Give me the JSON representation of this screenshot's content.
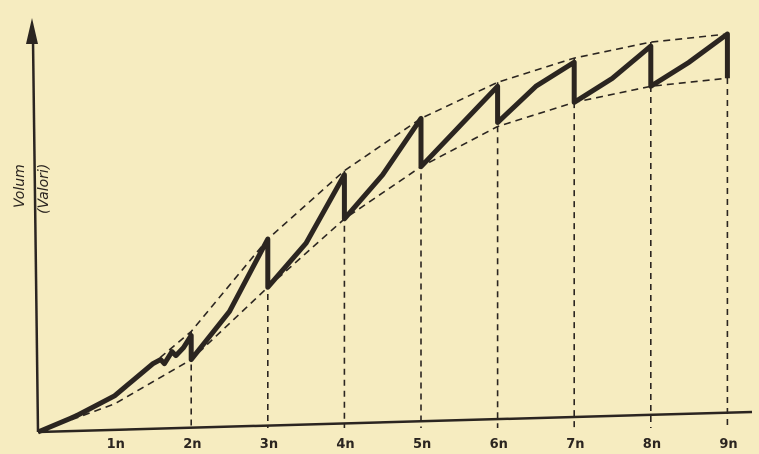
{
  "chart_data": {
    "type": "line",
    "title": "",
    "ylabel_line1": "Volum",
    "ylabel_line2": "(Valori)",
    "xlabel": "",
    "x_tick_labels": [
      "1n",
      "2n",
      "3n",
      "4n",
      "5n",
      "6n",
      "7n",
      "8n",
      "9n"
    ],
    "xlim": [
      0,
      9.4
    ],
    "ylim": [
      0,
      1.0
    ],
    "grid": false,
    "series": [
      {
        "style": "solid-thick",
        "points": [
          [
            0,
            0
          ],
          [
            0.5,
            0.04
          ],
          [
            1.0,
            0.09
          ],
          [
            1.5,
            0.17
          ],
          [
            1.6,
            0.18
          ],
          [
            1.65,
            0.17
          ],
          [
            1.75,
            0.2
          ],
          [
            1.8,
            0.19
          ],
          [
            1.9,
            0.21
          ],
          [
            2.0,
            0.24
          ],
          [
            2.0,
            0.18
          ],
          [
            2.5,
            0.3
          ],
          [
            3.0,
            0.48
          ],
          [
            3.0,
            0.36
          ],
          [
            3.5,
            0.47
          ],
          [
            4.0,
            0.64
          ],
          [
            4.0,
            0.53
          ],
          [
            4.5,
            0.64
          ],
          [
            5.0,
            0.78
          ],
          [
            5.0,
            0.66
          ],
          [
            5.5,
            0.76
          ],
          [
            6.0,
            0.86
          ],
          [
            6.0,
            0.77
          ],
          [
            6.5,
            0.86
          ],
          [
            7.0,
            0.92
          ],
          [
            7.0,
            0.82
          ],
          [
            7.5,
            0.88
          ],
          [
            8.0,
            0.96
          ],
          [
            8.0,
            0.86
          ],
          [
            8.5,
            0.92
          ],
          [
            9.0,
            0.99
          ],
          [
            9.0,
            0.88
          ]
        ]
      },
      {
        "style": "dashed-upper",
        "points": [
          [
            0,
            0
          ],
          [
            1,
            0.09
          ],
          [
            2,
            0.25
          ],
          [
            3,
            0.48
          ],
          [
            4,
            0.65
          ],
          [
            5,
            0.78
          ],
          [
            6,
            0.87
          ],
          [
            7,
            0.93
          ],
          [
            8,
            0.97
          ],
          [
            9,
            0.99
          ]
        ]
      },
      {
        "style": "dashed-lower",
        "points": [
          [
            0,
            0
          ],
          [
            1,
            0.07
          ],
          [
            2,
            0.18
          ],
          [
            3,
            0.36
          ],
          [
            4,
            0.53
          ],
          [
            5,
            0.66
          ],
          [
            6,
            0.76
          ],
          [
            7,
            0.82
          ],
          [
            8,
            0.86
          ],
          [
            9,
            0.88
          ]
        ]
      }
    ],
    "vertical_guides_at": [
      2,
      3,
      4,
      5,
      6,
      7,
      8,
      9
    ]
  }
}
